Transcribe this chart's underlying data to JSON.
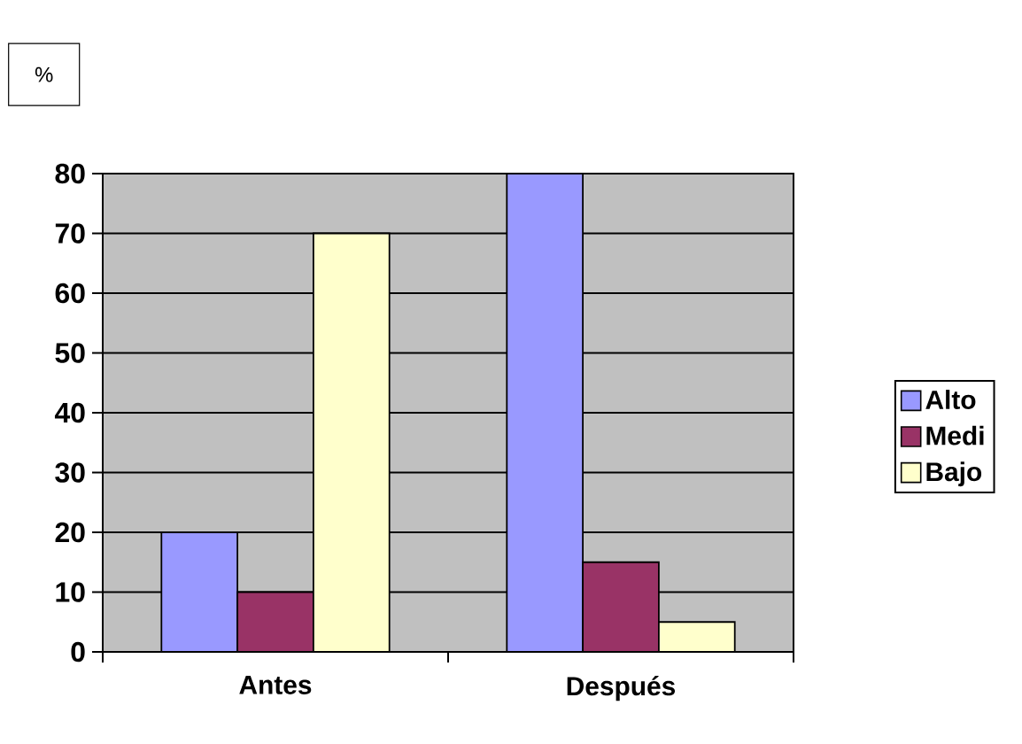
{
  "chart_data": {
    "type": "bar",
    "ylabel": "%",
    "categories": [
      "Antes",
      "Después"
    ],
    "series": [
      {
        "name": "Alto",
        "color": "#9999ff",
        "values": [
          20,
          80
        ]
      },
      {
        "name": "Medi",
        "color": "#993366",
        "values": [
          10,
          15
        ]
      },
      {
        "name": "Bajo",
        "color": "#ffffcc",
        "values": [
          70,
          5
        ]
      }
    ],
    "ylim": [
      0,
      80
    ],
    "yticks": [
      0,
      10,
      20,
      30,
      40,
      50,
      60,
      70,
      80
    ],
    "grid": "y",
    "legend": "right"
  }
}
